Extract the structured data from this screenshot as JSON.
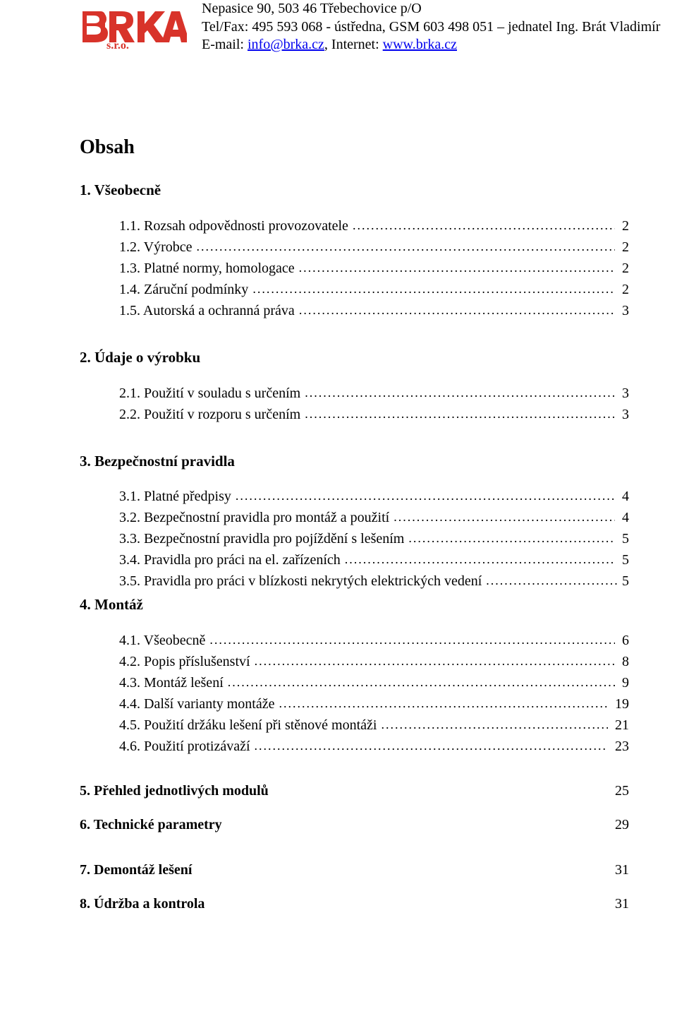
{
  "header": {
    "line1": "Nepasice 90, 503 46 Třebechovice p/O",
    "line2_a": "Tel/Fax: 495 593 068 - ústředna, GSM 603 498 051 – jednatel Ing. Brát Vladimír",
    "line3_a": "E-mail: ",
    "line3_link": "info@brka.cz",
    "line3_b": ", Internet: ",
    "line3_link2": "www.brka.cz"
  },
  "logo": {
    "sro": "s.r.o.",
    "color": "#d8332a"
  },
  "content_title": "Obsah",
  "sec1": {
    "title": "1. Všeobecně",
    "items": [
      {
        "label": "1.1.  Rozsah odpovědnosti provozovatele",
        "page": "2"
      },
      {
        "label": "1.2.  Výrobce",
        "page": "2"
      },
      {
        "label": "1.3.  Platné normy, homologace",
        "page": "2"
      },
      {
        "label": "1.4.  Záruční podmínky",
        "page": "2"
      },
      {
        "label": "1.5.  Autorská a ochranná práva",
        "page": "3"
      }
    ]
  },
  "sec2": {
    "title": "2. Údaje o výrobku",
    "items": [
      {
        "label": "2.1.  Použití v souladu s určením ",
        "page": "3"
      },
      {
        "label": "2.2.  Použití v rozporu s určením",
        "page": "3"
      }
    ]
  },
  "sec3": {
    "title": "3. Bezpečnostní pravidla",
    "items": [
      {
        "label": "3.1.  Platné předpisy",
        "page": "4"
      },
      {
        "label": "3.2.  Bezpečnostní pravidla pro montáž a použití",
        "page": "4"
      },
      {
        "label": "3.3.  Bezpečnostní pravidla pro pojíždění s lešením",
        "page": "5"
      },
      {
        "label": "3.4.  Pravidla pro práci na el. zařízeních",
        "page": "5"
      },
      {
        "label": "3.5.  Pravidla pro práci v blízkosti nekrytých elektrických vedení",
        "page": "5",
        "tight": true
      }
    ]
  },
  "sec4": {
    "title": "4. Montáž",
    "items": [
      {
        "label": "4.1.  Všeobecně",
        "page": "6"
      },
      {
        "label": "4.2.  Popis příslušenství",
        "page": "8"
      },
      {
        "label": "4.3.  Montáž lešení ",
        "page": "9"
      },
      {
        "label": "4.4.  Další varianty montáže",
        "page": "19"
      },
      {
        "label": "4.5.  Použití držáku lešení při stěnové montáži",
        "page": "21"
      },
      {
        "label": "4.6.  Použití protizávaží",
        "page": "23"
      }
    ]
  },
  "level1": [
    {
      "label": "5.    Přehled jednotlivých modulů",
      "page": "25"
    },
    {
      "label": "6.    Technické parametry",
      "page": "29"
    }
  ],
  "bottom": [
    {
      "label": " 7.    Demontáž lešení  ",
      "page": "31"
    },
    {
      "label": " 8.    Údržba a kontrola",
      "page": "31"
    }
  ]
}
